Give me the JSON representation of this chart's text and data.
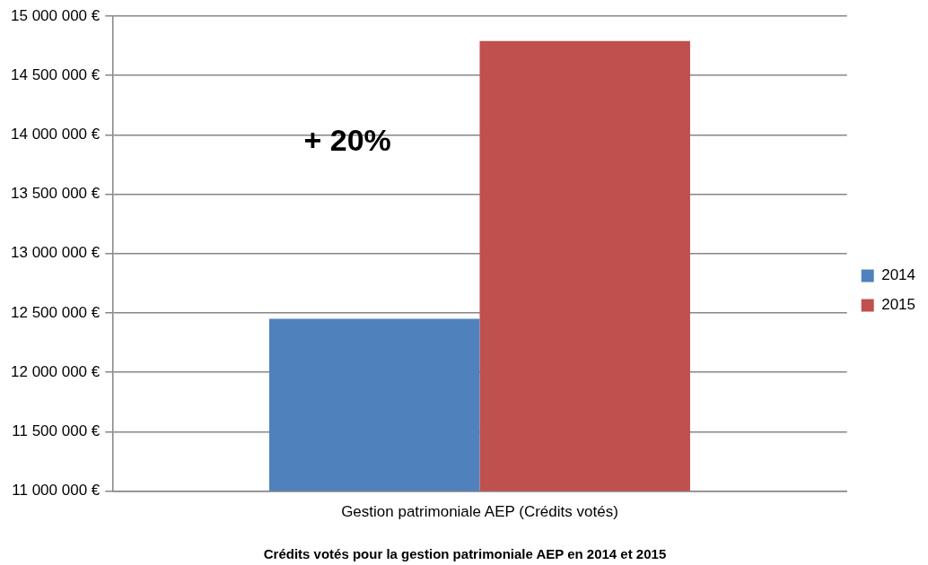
{
  "chart_data": {
    "type": "bar",
    "title": "Crédits votés pour la gestion patrimoniale AEP en 2014 et 2015",
    "categories": [
      "Gestion patrimoniale AEP (Crédits votés)"
    ],
    "series": [
      {
        "name": "2014",
        "color": "#4f81bd",
        "values": [
          12450000
        ]
      },
      {
        "name": "2015",
        "color": "#c0504d",
        "values": [
          14790000
        ]
      }
    ],
    "ylim": [
      11000000,
      15000000
    ],
    "yticks": [
      {
        "value": 11000000,
        "label": "11 000 000 €"
      },
      {
        "value": 11500000,
        "label": "11 500 000 €"
      },
      {
        "value": 12000000,
        "label": "12 000 000 €"
      },
      {
        "value": 12500000,
        "label": "12 500 000 €"
      },
      {
        "value": 13000000,
        "label": "13 000 000 €"
      },
      {
        "value": 13500000,
        "label": "13 500 000 €"
      },
      {
        "value": 14000000,
        "label": "14 000 000 €"
      },
      {
        "value": 14500000,
        "label": "14 500 000 €"
      },
      {
        "value": 15000000,
        "label": "15 000 000 €"
      }
    ],
    "grid": "y",
    "legend": "right",
    "annotations": [
      "+ 20%"
    ]
  }
}
